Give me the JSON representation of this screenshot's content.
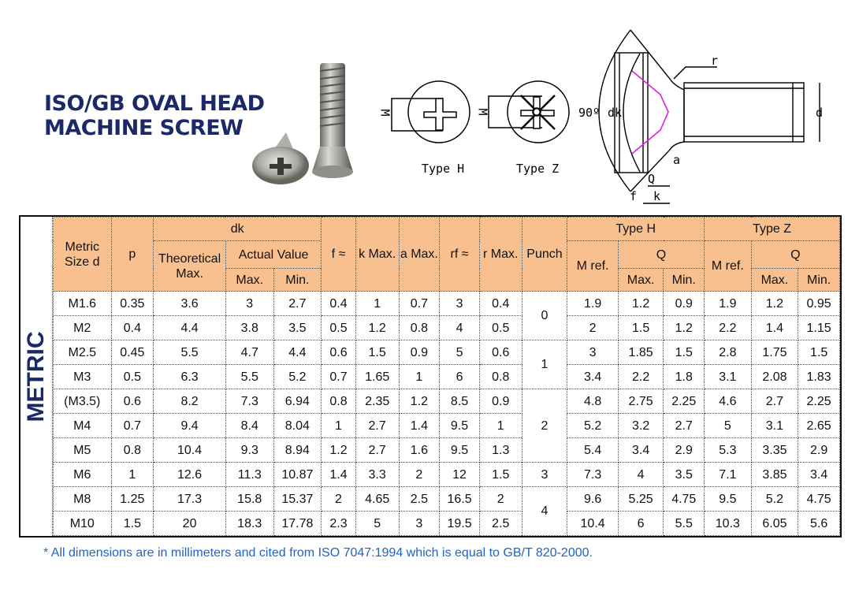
{
  "title": {
    "line1": "ISO/GB OVAL HEAD",
    "line2": "MACHINE SCREW"
  },
  "diagram": {
    "type_h": "Type H",
    "type_z": "Type Z",
    "m": "M",
    "angle": "90º",
    "dk": "dk",
    "d": "d",
    "r": "r",
    "a": "a",
    "q": "Q",
    "f": "f",
    "k": "k"
  },
  "colors": {
    "header_bg": "#f9c08f",
    "title": "#1b2a66",
    "footnote": "#1f63c4",
    "profile": "#e020e0"
  },
  "side_label": "METRIC",
  "headers": {
    "size": "Metric Size d",
    "p": "p",
    "dk": "dk",
    "theoretical": "Theoretical Max.",
    "actual": "Actual Value",
    "max": "Max.",
    "min": "Min.",
    "f": "f ≈",
    "k": "k Max.",
    "a": "a Max.",
    "rf": "rf ≈",
    "r": "r Max.",
    "punch": "Punch",
    "type_h": "Type H",
    "type_z": "Type Z",
    "m_ref": "M ref.",
    "q": "Q"
  },
  "rows": [
    [
      "M1.6",
      "0.35",
      "3.6",
      "3",
      "2.7",
      "0.4",
      "1",
      "0.7",
      "3",
      "0.4",
      "1.9",
      "1.2",
      "0.9",
      "1.9",
      "1.2",
      "0.95"
    ],
    [
      "M2",
      "0.4",
      "4.4",
      "3.8",
      "3.5",
      "0.5",
      "1.2",
      "0.8",
      "4",
      "0.5",
      "2",
      "1.5",
      "1.2",
      "2.2",
      "1.4",
      "1.15"
    ],
    [
      "M2.5",
      "0.45",
      "5.5",
      "4.7",
      "4.4",
      "0.6",
      "1.5",
      "0.9",
      "5",
      "0.6",
      "3",
      "1.85",
      "1.5",
      "2.8",
      "1.75",
      "1.5"
    ],
    [
      "M3",
      "0.5",
      "6.3",
      "5.5",
      "5.2",
      "0.7",
      "1.65",
      "1",
      "6",
      "0.8",
      "3.4",
      "2.2",
      "1.8",
      "3.1",
      "2.08",
      "1.83"
    ],
    [
      "(M3.5)",
      "0.6",
      "8.2",
      "7.3",
      "6.94",
      "0.8",
      "2.35",
      "1.2",
      "8.5",
      "0.9",
      "4.8",
      "2.75",
      "2.25",
      "4.6",
      "2.7",
      "2.25"
    ],
    [
      "M4",
      "0.7",
      "9.4",
      "8.4",
      "8.04",
      "1",
      "2.7",
      "1.4",
      "9.5",
      "1",
      "5.2",
      "3.2",
      "2.7",
      "5",
      "3.1",
      "2.65"
    ],
    [
      "M5",
      "0.8",
      "10.4",
      "9.3",
      "8.94",
      "1.2",
      "2.7",
      "1.6",
      "9.5",
      "1.3",
      "5.4",
      "3.4",
      "2.9",
      "5.3",
      "3.35",
      "2.9"
    ],
    [
      "M6",
      "1",
      "12.6",
      "11.3",
      "10.87",
      "1.4",
      "3.3",
      "2",
      "12",
      "1.5",
      "7.3",
      "4",
      "3.5",
      "7.1",
      "3.85",
      "3.4"
    ],
    [
      "M8",
      "1.25",
      "17.3",
      "15.8",
      "15.37",
      "2",
      "4.65",
      "2.5",
      "16.5",
      "2",
      "9.6",
      "5.25",
      "4.75",
      "9.5",
      "5.2",
      "4.75"
    ],
    [
      "M10",
      "1.5",
      "20",
      "18.3",
      "17.78",
      "2.3",
      "5",
      "3",
      "19.5",
      "2.5",
      "10.4",
      "6",
      "5.5",
      "10.3",
      "6.05",
      "5.6"
    ]
  ],
  "punch": [
    {
      "value": "0",
      "start": 0,
      "span": 2
    },
    {
      "value": "1",
      "start": 2,
      "span": 2
    },
    {
      "value": "2",
      "start": 4,
      "span": 3
    },
    {
      "value": "3",
      "start": 7,
      "span": 1
    },
    {
      "value": "4",
      "start": 8,
      "span": 2
    }
  ],
  "footnote": "* All dimensions are in millimeters and cited from ISO 7047:1994 which is equal to GB/T 820-2000."
}
